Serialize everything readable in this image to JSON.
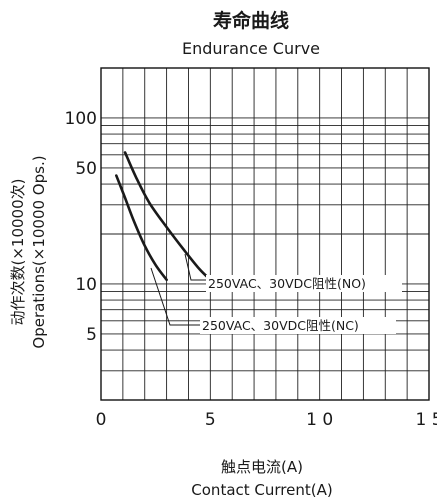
{
  "chart_data": {
    "type": "line",
    "title": "寿命曲线",
    "subtitle": "Endurance Curve",
    "xlabel": "触点电流(A)",
    "xlabel_en": "Contact Current(A)",
    "ylabel": "动作次数(×10000次)",
    "ylabel_en": "Operations(×10000 Ops.)",
    "x_scale": "linear",
    "y_scale": "log",
    "xlim": [
      0,
      15
    ],
    "ylim": [
      2,
      200
    ],
    "x_ticks": [
      {
        "value": 0,
        "label": "0"
      },
      {
        "value": 5,
        "label": "5"
      },
      {
        "value": 10,
        "label": "1 0"
      },
      {
        "value": 15,
        "label": "1 5"
      }
    ],
    "y_ticks": [
      {
        "value": 5,
        "label": "5"
      },
      {
        "value": 10,
        "label": "10"
      },
      {
        "value": 50,
        "label": "50"
      },
      {
        "value": 100,
        "label": "100"
      }
    ],
    "grid": true,
    "series": [
      {
        "name": "250VAC、30VDC阻性(NO)",
        "points": [
          [
            1.1,
            62
          ],
          [
            1.6,
            44
          ],
          [
            2.2,
            31
          ],
          [
            3.0,
            22
          ],
          [
            3.8,
            16
          ],
          [
            4.5,
            12.3
          ],
          [
            5.0,
            10.6
          ]
        ]
      },
      {
        "name": "250VAC、30VDC阻性(NC)",
        "points": [
          [
            0.7,
            45
          ],
          [
            1.1,
            33
          ],
          [
            1.5,
            24
          ],
          [
            2.0,
            17
          ],
          [
            2.5,
            13
          ],
          [
            3.0,
            10.6
          ]
        ]
      }
    ]
  },
  "colors": {
    "curve": "#1a1a1a",
    "grid": "#222222",
    "axis": "#111111"
  }
}
